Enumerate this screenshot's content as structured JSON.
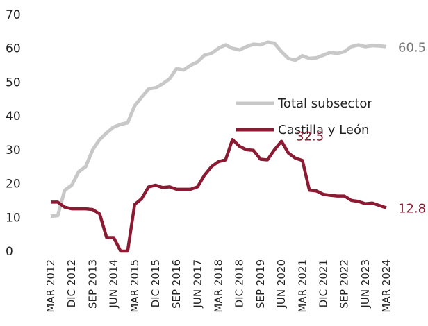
{
  "chart_data": {
    "type": "line",
    "title": "",
    "xlabel": "",
    "ylabel": "",
    "ylim": [
      0,
      70
    ],
    "yticks": [
      0,
      10,
      20,
      30,
      40,
      50,
      60,
      70
    ],
    "grid": false,
    "legend": "right",
    "x_labels": [
      "MAR 2012",
      "DIC 2012",
      "SEP 2013",
      "JUN 2014",
      "MAR 2015",
      "DIC 2015",
      "SEP 2016",
      "JUN 2017",
      "MAR 2018",
      "DIC 2018",
      "SEP 2019",
      "JUN 2020",
      "MAR 2021",
      "DIC 2021",
      "SEP 2022",
      "JUN 2023",
      "MAR 2024"
    ],
    "x": [
      "MAR 2012",
      "JUN 2012",
      "SEP 2012",
      "DIC 2012",
      "MAR 2013",
      "JUN 2013",
      "SEP 2013",
      "DIC 2013",
      "MAR 2014",
      "JUN 2014",
      "SEP 2014",
      "DIC 2014",
      "MAR 2015",
      "JUN 2015",
      "SEP 2015",
      "DIC 2015",
      "MAR 2016",
      "JUN 2016",
      "SEP 2016",
      "DIC 2016",
      "MAR 2017",
      "JUN 2017",
      "SEP 2017",
      "DIC 2017",
      "MAR 2018",
      "JUN 2018",
      "SEP 2018",
      "DIC 2018",
      "MAR 2019",
      "JUN 2019",
      "SEP 2019",
      "DIC 2019",
      "MAR 2020",
      "JUN 2020",
      "SEP 2020",
      "DIC 2020",
      "MAR 2021",
      "JUN 2021",
      "SEP 2021",
      "DIC 2021",
      "MAR 2022",
      "JUN 2022",
      "SEP 2022",
      "DIC 2022",
      "MAR 2023",
      "JUN 2023",
      "SEP 2023",
      "DIC 2023",
      "MAR 2024"
    ],
    "series": [
      {
        "name": "Total subsector",
        "color": "#c8c8c8",
        "values": [
          10.3,
          10.5,
          18.0,
          19.5,
          23.5,
          25.0,
          30.0,
          33.0,
          35.0,
          36.7,
          37.5,
          38.0,
          43.0,
          45.5,
          48.0,
          48.3,
          49.5,
          51.0,
          54.0,
          53.6,
          55.0,
          56.0,
          58.0,
          58.5,
          60.0,
          61.0,
          60.0,
          59.5,
          60.5,
          61.2,
          61.0,
          61.8,
          61.5,
          59.0,
          57.0,
          56.5,
          57.8,
          57.0,
          57.2,
          58.0,
          58.8,
          58.5,
          59.0,
          60.5,
          61.0,
          60.5,
          60.8,
          60.7,
          60.5
        ],
        "end_label": "60.5"
      },
      {
        "name": "Castilla y León",
        "color": "#8b1a33",
        "values": [
          14.5,
          14.5,
          13.0,
          12.5,
          12.5,
          12.5,
          12.3,
          11.0,
          4.0,
          4.0,
          0.0,
          0.0,
          13.8,
          15.5,
          19.0,
          19.5,
          18.8,
          19.0,
          18.3,
          18.3,
          18.3,
          19.0,
          22.5,
          25.0,
          26.5,
          27.0,
          33.0,
          31.0,
          30.0,
          29.8,
          27.2,
          27.0,
          30.0,
          32.5,
          29.0,
          27.5,
          26.8,
          18.0,
          17.8,
          16.8,
          16.5,
          16.3,
          16.3,
          15.0,
          14.7,
          14.0,
          14.2,
          13.5,
          12.8
        ],
        "end_label": "12.8",
        "peak_label": "32.5"
      }
    ]
  }
}
